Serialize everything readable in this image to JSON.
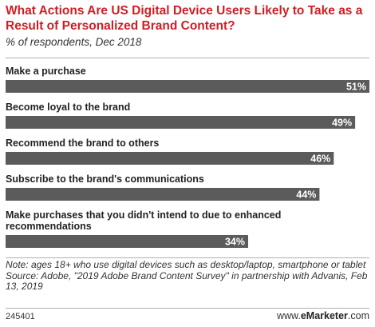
{
  "chart_data": {
    "type": "bar",
    "orientation": "horizontal",
    "title": "What Actions Are US Digital Device Users Likely to Take as a Result of Personalized Brand Content?",
    "subtitle": "% of respondents, Dec 2018",
    "categories": [
      [
        "Make a purchase"
      ],
      [
        "Become loyal to the brand"
      ],
      [
        "Recommend the brand to others"
      ],
      [
        "Subscribe to the brand's communications"
      ],
      [
        "Make purchases that you didn't intend to due to enhanced",
        "recommendations"
      ]
    ],
    "values": [
      51,
      49,
      46,
      44,
      34
    ],
    "value_labels": [
      "51%",
      "49%",
      "46%",
      "44%",
      "34%"
    ],
    "xlim": [
      0,
      51
    ],
    "grid": false,
    "bar_color": "#5b5b5b"
  },
  "notes": {
    "note": "Note: ages 18+ who use digital devices such as desktop/laptop, smartphone or tablet",
    "source": "Source: Adobe, \"2019 Adobe Brand Content Survey\" in partnership with Advanis, Feb 13, 2019"
  },
  "footer": {
    "chart_id": "245401",
    "brand_prefix": "www.",
    "brand_name": "eMarketer",
    "brand_suffix": ".com"
  }
}
